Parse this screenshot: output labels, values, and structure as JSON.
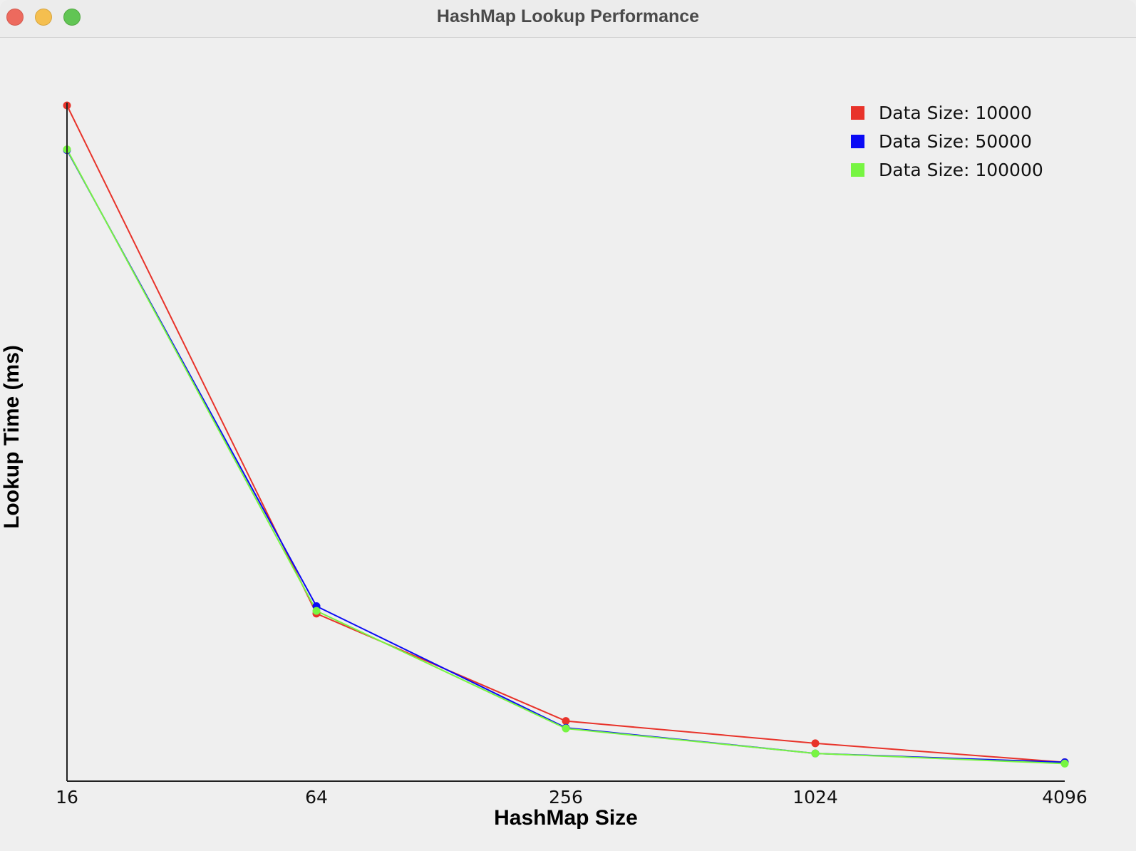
{
  "window": {
    "title": "HashMap Lookup Performance",
    "buttons": [
      "close",
      "minimize",
      "maximize"
    ]
  },
  "chart_data": {
    "type": "line",
    "title": "",
    "xlabel": "HashMap Size",
    "ylabel": "Lookup Time (ms)",
    "x_scale": "log2",
    "categories": [
      "16",
      "64",
      "256",
      "1024",
      "4096"
    ],
    "x": [
      16,
      64,
      256,
      1024,
      4096
    ],
    "y_tick_labels_shown": false,
    "ylim": [
      0,
      100
    ],
    "grid": false,
    "legend_position": "top-right",
    "series": [
      {
        "name": "Data Size: 10000",
        "color": "#e8332a",
        "values": [
          100.0,
          24.8,
          8.9,
          5.6,
          2.8
        ]
      },
      {
        "name": "Data Size: 50000",
        "color": "#0a0af5",
        "values": [
          93.4,
          25.9,
          7.9,
          4.1,
          2.8
        ]
      },
      {
        "name": "Data Size: 100000",
        "color": "#77f542",
        "values": [
          93.5,
          25.2,
          7.8,
          4.1,
          2.6
        ]
      }
    ]
  }
}
